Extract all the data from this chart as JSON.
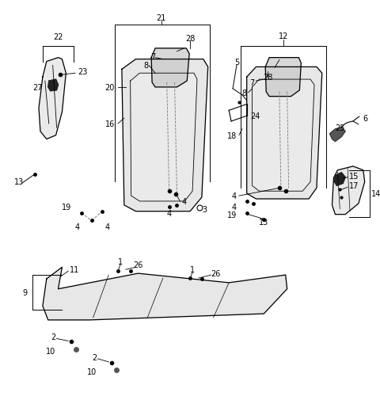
{
  "background_color": "#ffffff",
  "line_color": "#000000",
  "figure_width": 4.8,
  "figure_height": 5.06,
  "dpi": 100
}
